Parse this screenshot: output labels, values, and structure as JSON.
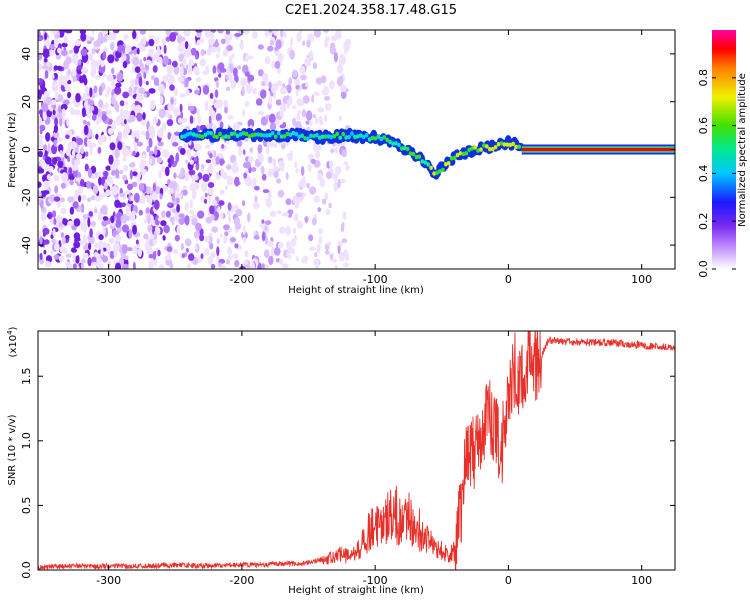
{
  "title": "C2E1.2024.358.17.48.G15",
  "colors": {
    "snr_line": "#e8302a",
    "spectral_scatter": "#8a3cf0",
    "spectral_core": "#ff0000"
  },
  "chart_data": [
    {
      "type": "heatmap",
      "xlabel": "Height of straight line (km)",
      "ylabel": "Frequency (Hz)",
      "xlim": [
        -353,
        125
      ],
      "ylim": [
        -50,
        50
      ],
      "xticks": [
        -300,
        -200,
        -100,
        0,
        100
      ],
      "xtick_labels": [
        "-300",
        "-200",
        "-100",
        "0",
        "100"
      ],
      "yticks": [
        -40,
        -20,
        0,
        20,
        40
      ],
      "ytick_labels": [
        "-40",
        "-20",
        "0",
        "20",
        "40"
      ],
      "colorbar": {
        "label": "Normalized spectral amplitude",
        "range": [
          0,
          1
        ],
        "ticks": [
          0.0,
          0.2,
          0.4,
          0.6,
          0.8
        ],
        "tick_labels": [
          "0.0",
          "0.2",
          "0.4",
          "0.6",
          "0.8"
        ],
        "colormap": "white-purple-blue-cyan-green-yellow-red-magenta"
      },
      "ridge_line": {
        "x": [
          -245,
          -220,
          -200,
          -180,
          -160,
          -140,
          -120,
          -110,
          -100,
          -90,
          -80,
          -70,
          -60,
          -55,
          -50,
          -40,
          -30,
          -20,
          -10,
          0,
          5,
          10,
          50,
          100,
          125
        ],
        "y": [
          6,
          6,
          6,
          6,
          6,
          5,
          6,
          5,
          5,
          4,
          1,
          -2,
          -6,
          -10,
          -8,
          -3,
          -1,
          1,
          1,
          3,
          2,
          0,
          0,
          0,
          0
        ]
      },
      "grid": false
    },
    {
      "type": "line",
      "xlabel": "Height of straight line (km)",
      "ylabel": "SNR (10 * v/v)",
      "y_multiplier": "(x10^4)",
      "y_multiplier_base": "(x10",
      "y_multiplier_exp": "4",
      "xlim": [
        -353,
        125
      ],
      "ylim": [
        0,
        1.85
      ],
      "xticks": [
        -300,
        -200,
        -100,
        0,
        100
      ],
      "xtick_labels": [
        "-300",
        "-200",
        "-100",
        "0",
        "100"
      ],
      "yticks": [
        0.0,
        0.5,
        1.0,
        1.5
      ],
      "ytick_labels": [
        "0.0",
        "0.5",
        "1.0",
        "1.5"
      ],
      "series": [
        {
          "x": [
            -353,
            -330,
            -300,
            -270,
            -250,
            -230,
            -210,
            -190,
            -170,
            -155,
            -145,
            -135,
            -125,
            -118,
            -112,
            -105,
            -100,
            -95,
            -90,
            -85,
            -80,
            -75,
            -70,
            -65,
            -60,
            -55,
            -50,
            -45,
            -40,
            -36,
            -32,
            -28,
            -25,
            -20,
            -15,
            -10,
            -5,
            0,
            5,
            10,
            15,
            20,
            25,
            30,
            40,
            60,
            80,
            100,
            110,
            125
          ],
          "y": [
            0.02,
            0.03,
            0.03,
            0.03,
            0.04,
            0.03,
            0.04,
            0.04,
            0.05,
            0.05,
            0.07,
            0.09,
            0.12,
            0.1,
            0.16,
            0.3,
            0.35,
            0.3,
            0.4,
            0.45,
            0.35,
            0.4,
            0.35,
            0.3,
            0.22,
            0.18,
            0.15,
            0.12,
            0.15,
            0.45,
            0.8,
            0.95,
            0.9,
            1.0,
            1.25,
            1.05,
            0.95,
            1.3,
            1.55,
            1.45,
            1.7,
            1.6,
            1.65,
            1.78,
            1.77,
            1.76,
            1.76,
            1.74,
            1.73,
            1.72
          ]
        }
      ],
      "grid": false
    }
  ]
}
